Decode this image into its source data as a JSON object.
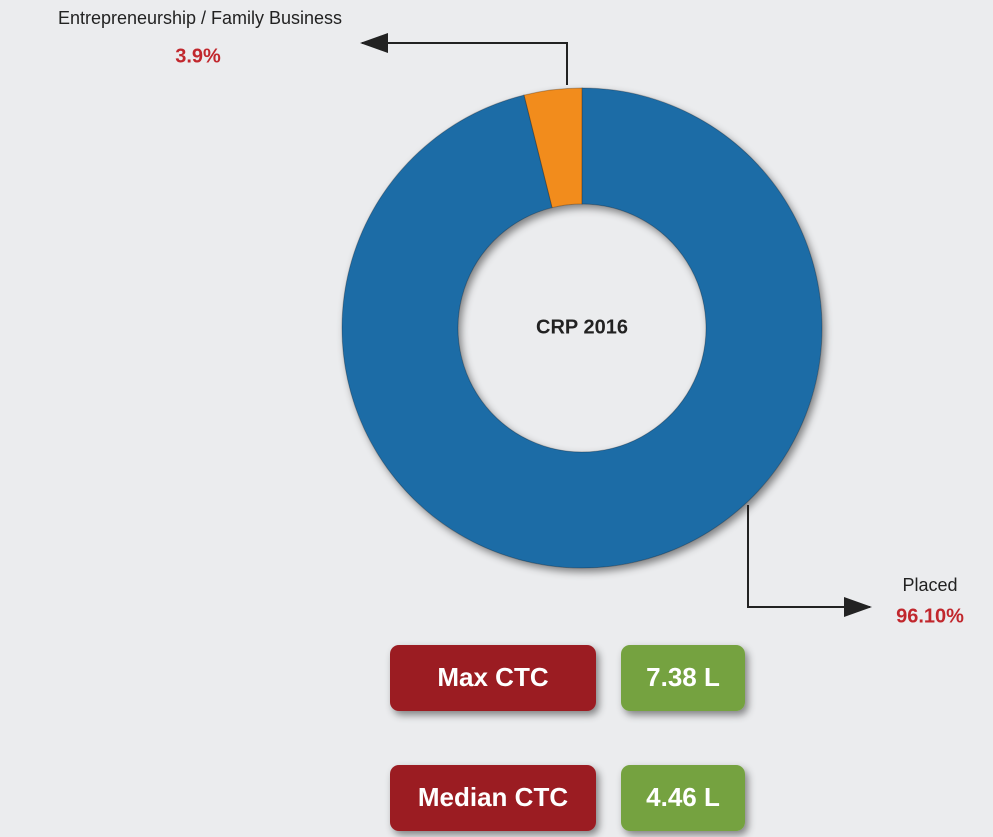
{
  "chart_data": {
    "type": "pie",
    "donut": true,
    "center_label": "CRP 2016",
    "categories": [
      "Entrepreneurship / Family Business",
      "Placed"
    ],
    "values": [
      3.9,
      96.1
    ],
    "value_labels": [
      "3.9%",
      "96.10%"
    ],
    "colors": [
      "#f28c1e",
      "#1f6ca6"
    ]
  },
  "stats": [
    {
      "label": "Max CTC",
      "value": "7.38 L"
    },
    {
      "label": "Median CTC",
      "value": "4.46 L"
    }
  ]
}
